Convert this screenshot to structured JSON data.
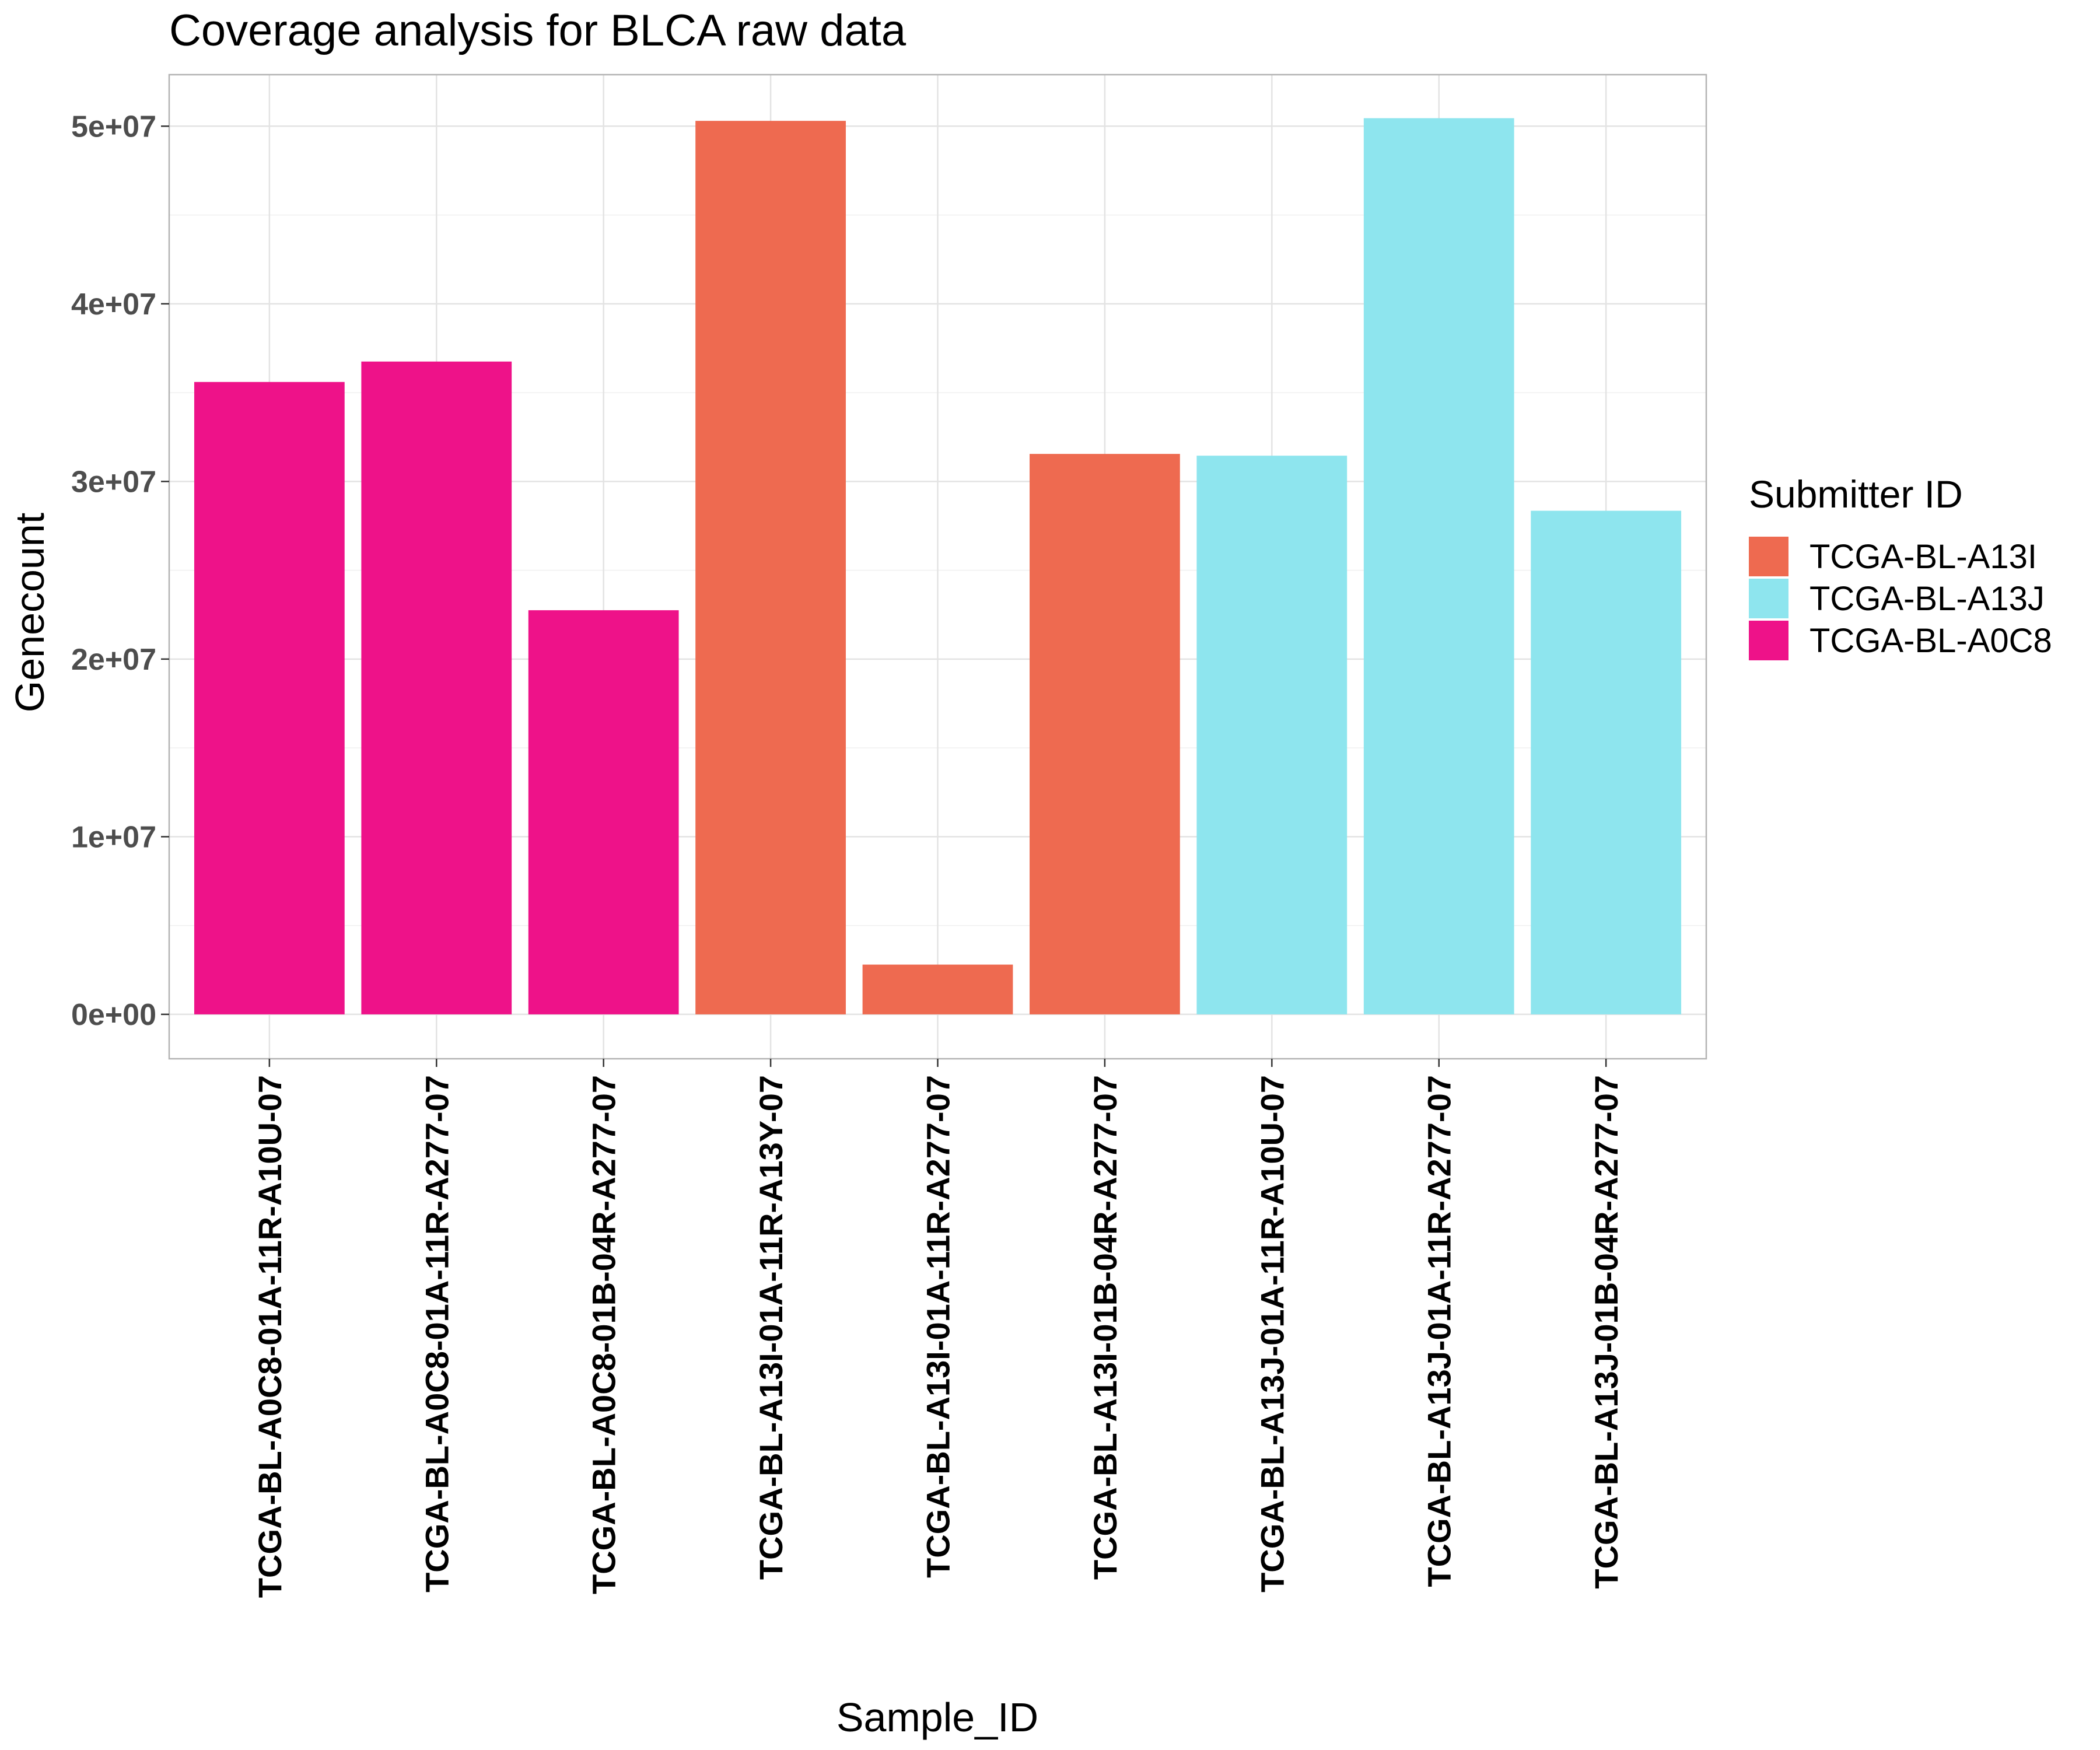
{
  "chart_data": {
    "type": "bar",
    "title": "Coverage analysis for BLCA raw data",
    "xlabel": "Sample_ID",
    "ylabel": "Genecount",
    "ylim": [
      -2500000,
      52900000
    ],
    "yticks": [
      0,
      10000000,
      20000000,
      30000000,
      40000000,
      50000000
    ],
    "ytick_labels": [
      "0e+00",
      "1e+07",
      "2e+07",
      "3e+07",
      "4e+07",
      "5e+07"
    ],
    "grid": true,
    "legend": {
      "title": "Submitter ID",
      "placement": "right",
      "entries": [
        {
          "name": "TCGA-BL-A13I",
          "color": "#EE6A50"
        },
        {
          "name": "TCGA-BL-A13J",
          "color": "#8EE5EE"
        },
        {
          "name": "TCGA-BL-A0C8",
          "color": "#EE1289"
        }
      ]
    },
    "categories": [
      "TCGA-BL-A0C8-01A-11R-A10U-07",
      "TCGA-BL-A0C8-01A-11R-A277-07",
      "TCGA-BL-A0C8-01B-04R-A277-07",
      "TCGA-BL-A13I-01A-11R-A13Y-07",
      "TCGA-BL-A13I-01A-11R-A277-07",
      "TCGA-BL-A13I-01B-04R-A277-07",
      "TCGA-BL-A13J-01A-11R-A10U-07",
      "TCGA-BL-A13J-01A-11R-A277-07",
      "TCGA-BL-A13J-01B-04R-A277-07"
    ],
    "values": [
      35600000,
      36750000,
      22750000,
      50300000,
      2800000,
      31550000,
      31450000,
      50450000,
      28350000
    ],
    "groups": [
      "TCGA-BL-A0C8",
      "TCGA-BL-A0C8",
      "TCGA-BL-A0C8",
      "TCGA-BL-A13I",
      "TCGA-BL-A13I",
      "TCGA-BL-A13I",
      "TCGA-BL-A13J",
      "TCGA-BL-A13J",
      "TCGA-BL-A13J"
    ]
  }
}
